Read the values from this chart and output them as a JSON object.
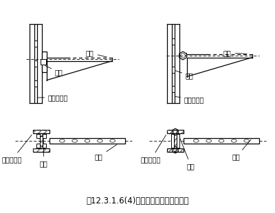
{
  "title": "图12.3.1.6(4)托臂在工字钢立柱上安装",
  "title_fontsize": 8.5,
  "bg_color": "#ffffff",
  "line_color": "#000000",
  "labels": {
    "bolt": "螺栓",
    "bracket": "托臂",
    "column": "工字钢立柱"
  },
  "label_fontsize": 7.0
}
